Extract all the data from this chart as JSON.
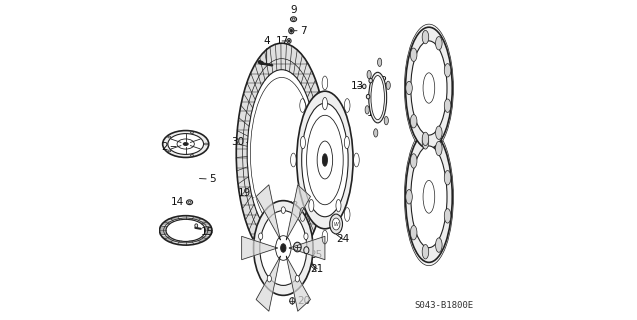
{
  "title": "",
  "background_color": "#ffffff",
  "diagram_code": "S043-B1800E",
  "line_color": "#222222",
  "label_fontsize": 7.5,
  "diagram_fontsize": 6.5
}
